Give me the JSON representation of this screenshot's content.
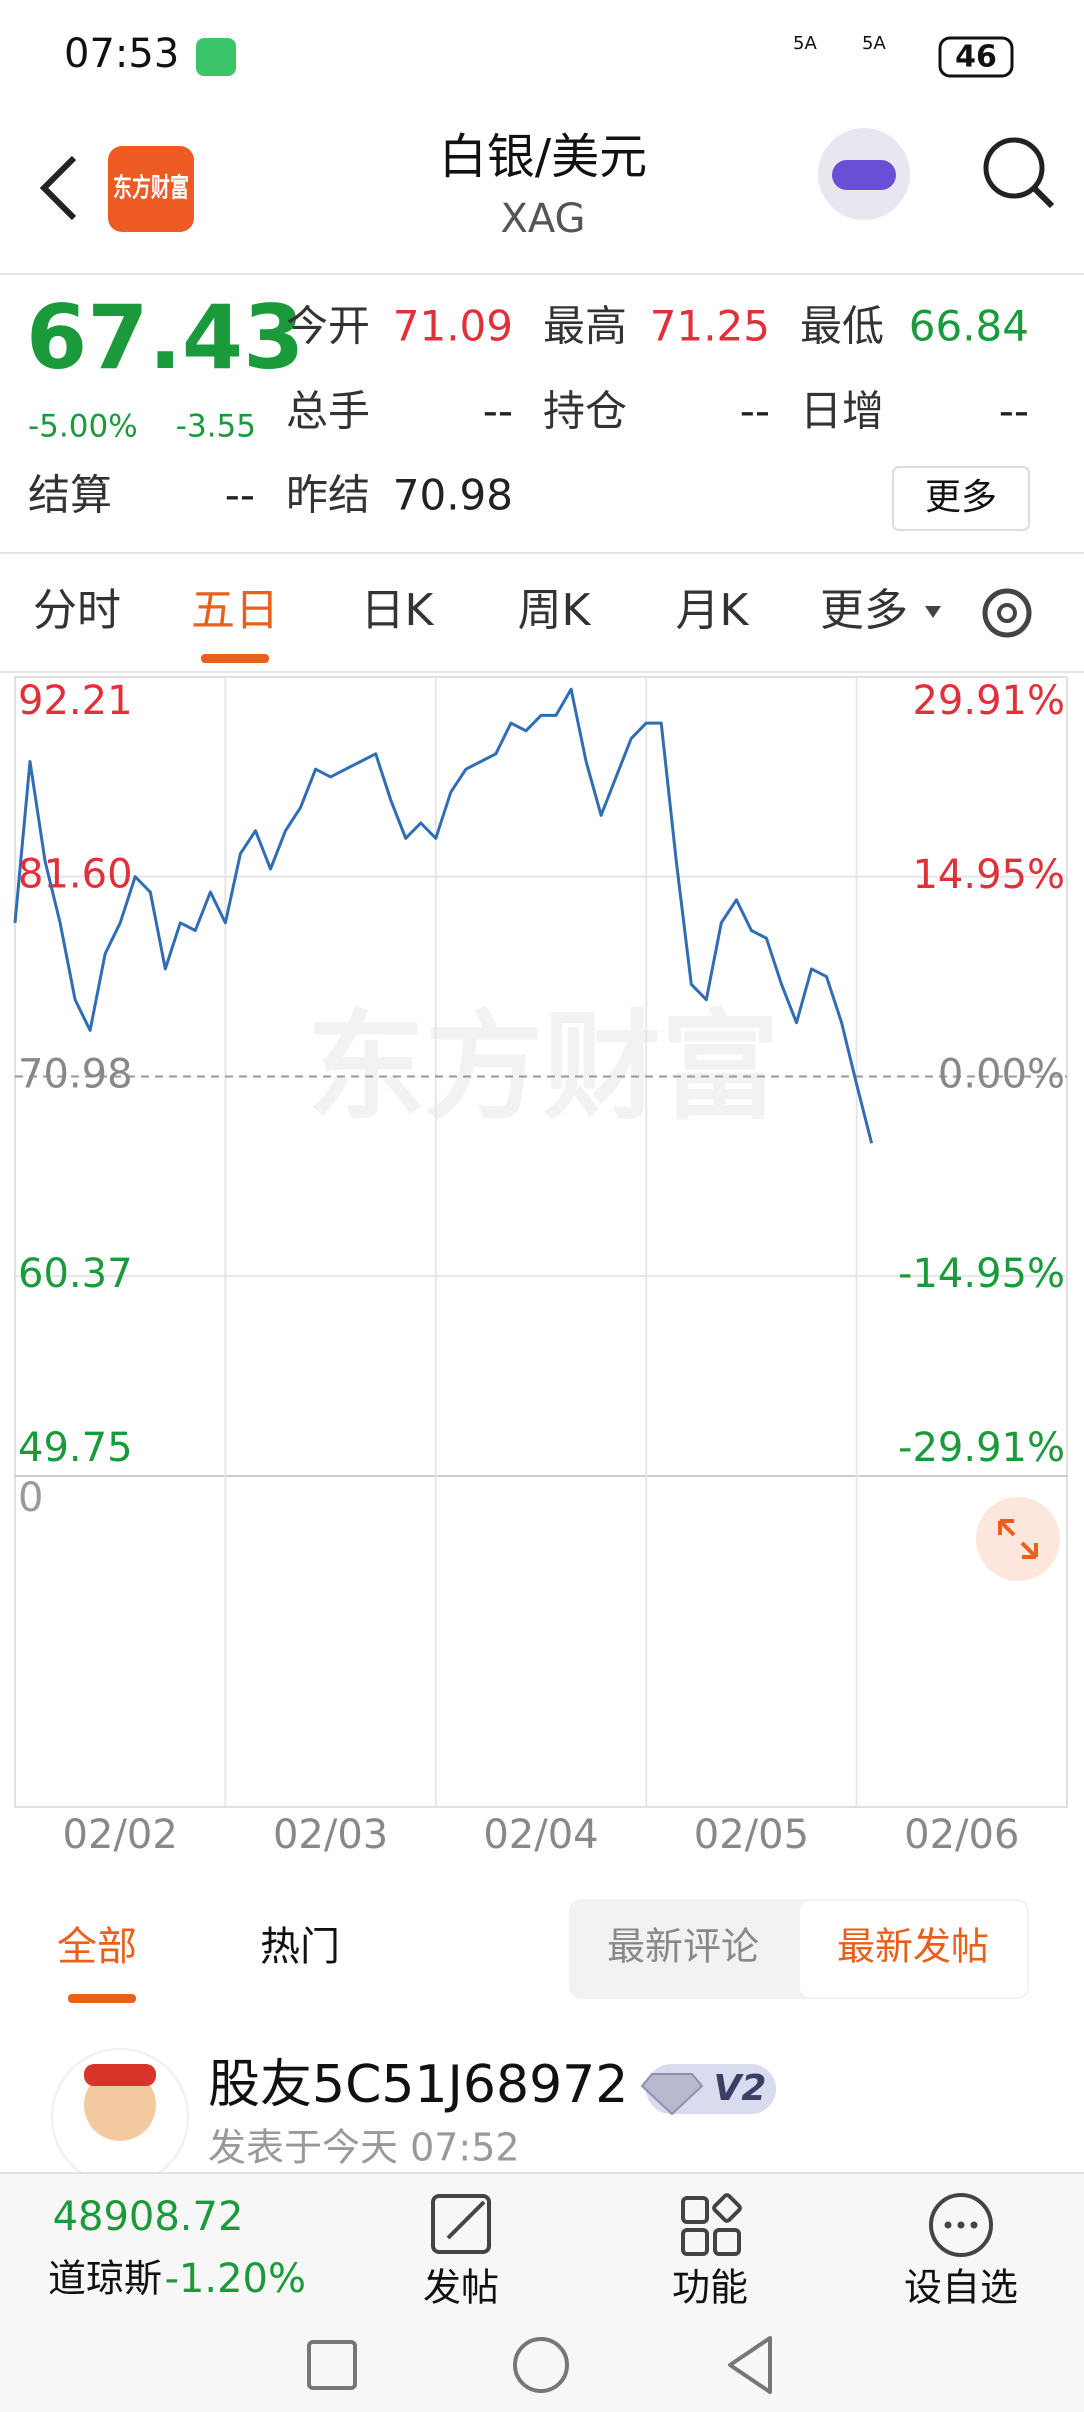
{
  "status_bar": {
    "time": "07:53",
    "network": [
      "5A",
      "5A"
    ],
    "battery": "46"
  },
  "header": {
    "logo": "东方财富",
    "title": "白银/美元",
    "subtitle": "XAG"
  },
  "quote": {
    "price": "67.43",
    "change_percent": "-5.00%",
    "change": "-3.55",
    "fields": [
      [
        {
          "label": "今开",
          "value": "71.09",
          "color": "#e0303a"
        },
        {
          "label": "最高",
          "value": "71.25",
          "color": "#e0303a"
        },
        {
          "label": "最低",
          "value": "66.84",
          "color": "#1a9a3a"
        }
      ],
      [
        {
          "label": "总手",
          "value": "--"
        },
        {
          "label": "持仓",
          "value": "--"
        },
        {
          "label": "日增",
          "value": "--"
        }
      ],
      [
        {
          "label": "结算",
          "value": "--"
        },
        {
          "label": "昨结",
          "value": "70.98"
        }
      ]
    ],
    "more": "更多"
  },
  "tabs": {
    "items": [
      "分时",
      "五日",
      "日K",
      "周K",
      "月K",
      "更多"
    ],
    "active": 1
  },
  "chart_data": {
    "type": "line",
    "watermark": "东方财富",
    "categories": [
      "02/02",
      "02/03",
      "02/04",
      "02/05",
      "02/06"
    ],
    "values": [
      [
        79.15,
        87.72,
        82.41,
        79.15,
        75.06,
        73.43,
        77.51,
        79.15,
        81.6,
        80.78,
        76.7,
        79.15,
        78.74,
        80.78
      ],
      [
        79.15,
        82.82,
        84.04,
        82.0,
        84.04,
        85.27,
        87.31,
        86.9,
        87.31,
        87.72,
        88.13,
        85.68,
        83.64,
        84.45
      ],
      [
        83.64,
        86.09,
        87.31,
        87.72,
        88.13,
        89.76,
        89.35,
        90.17,
        90.17,
        91.56,
        87.72,
        84.86,
        86.9,
        88.94
      ],
      [
        89.76,
        89.76,
        82.41,
        75.88,
        75.06,
        79.15,
        80.37,
        78.74,
        78.33,
        75.88,
        73.84,
        76.7,
        76.29,
        73.84
      ],
      [
        70.57,
        67.43
      ]
    ],
    "color": "#2f6db5",
    "ylim": [
      49.75,
      92.21
    ],
    "yticks": [
      92.21,
      {
        "value": 81.6,
        "label": "81.60"
      },
      70.98,
      60.37,
      49.75
    ],
    "y2lim": [
      -29.91,
      29.91
    ],
    "y2ticks": [
      {
        "value": 29.91,
        "label": "29.91%"
      },
      {
        "value": 14.95,
        "label": "14.95%"
      },
      {
        "value": 0,
        "label": "0.00%"
      },
      {
        "value": -14.95,
        "label": "-14.95%"
      },
      {
        "value": -29.91,
        "label": "-29.91%"
      }
    ],
    "grid": true,
    "volume_yticks": [
      0
    ]
  },
  "feed": {
    "tabs": [
      "全部",
      "热门"
    ],
    "sort": [
      "最新评论",
      "最新发帖"
    ],
    "post": {
      "user": "股友5C51J68972",
      "level": "V2",
      "time": "发表于今天 07:52"
    }
  },
  "bottom_bar": {
    "index_value": "48908.72",
    "index_name": "道琼斯",
    "index_change": "-1.20%",
    "buttons": [
      "发帖",
      "功能",
      "设自选"
    ]
  }
}
